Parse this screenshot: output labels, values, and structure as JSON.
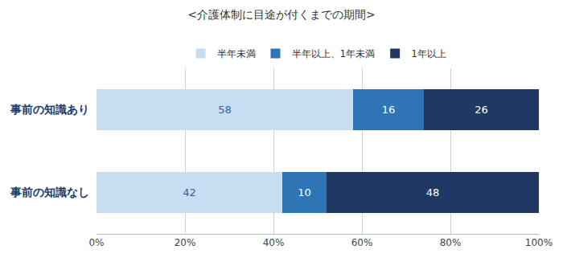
{
  "chart_data": {
    "type": "bar",
    "orientation": "horizontal",
    "stacked": true,
    "title": "<介護体制に目途が付くまでの期間>",
    "categories": [
      "事前の知識あり",
      "事前の知識なし"
    ],
    "series": [
      {
        "name": "半年未満",
        "color": "#c9ddf2",
        "values": [
          58,
          42
        ]
      },
      {
        "name": "半年以上、1年未満",
        "color": "#2e75b6",
        "values": [
          16,
          10
        ]
      },
      {
        "name": "1年以上",
        "color": "#1f3864",
        "values": [
          26,
          48
        ]
      }
    ],
    "xlim": [
      0,
      100
    ],
    "xticks": [
      {
        "value": 0,
        "label": "0%"
      },
      {
        "value": 20,
        "label": "20%"
      },
      {
        "value": 40,
        "label": "40%"
      },
      {
        "value": 60,
        "label": "60%"
      },
      {
        "value": 80,
        "label": "80%"
      },
      {
        "value": 100,
        "label": "100%"
      }
    ],
    "grid": true,
    "legend": "top",
    "data_labels": true
  }
}
